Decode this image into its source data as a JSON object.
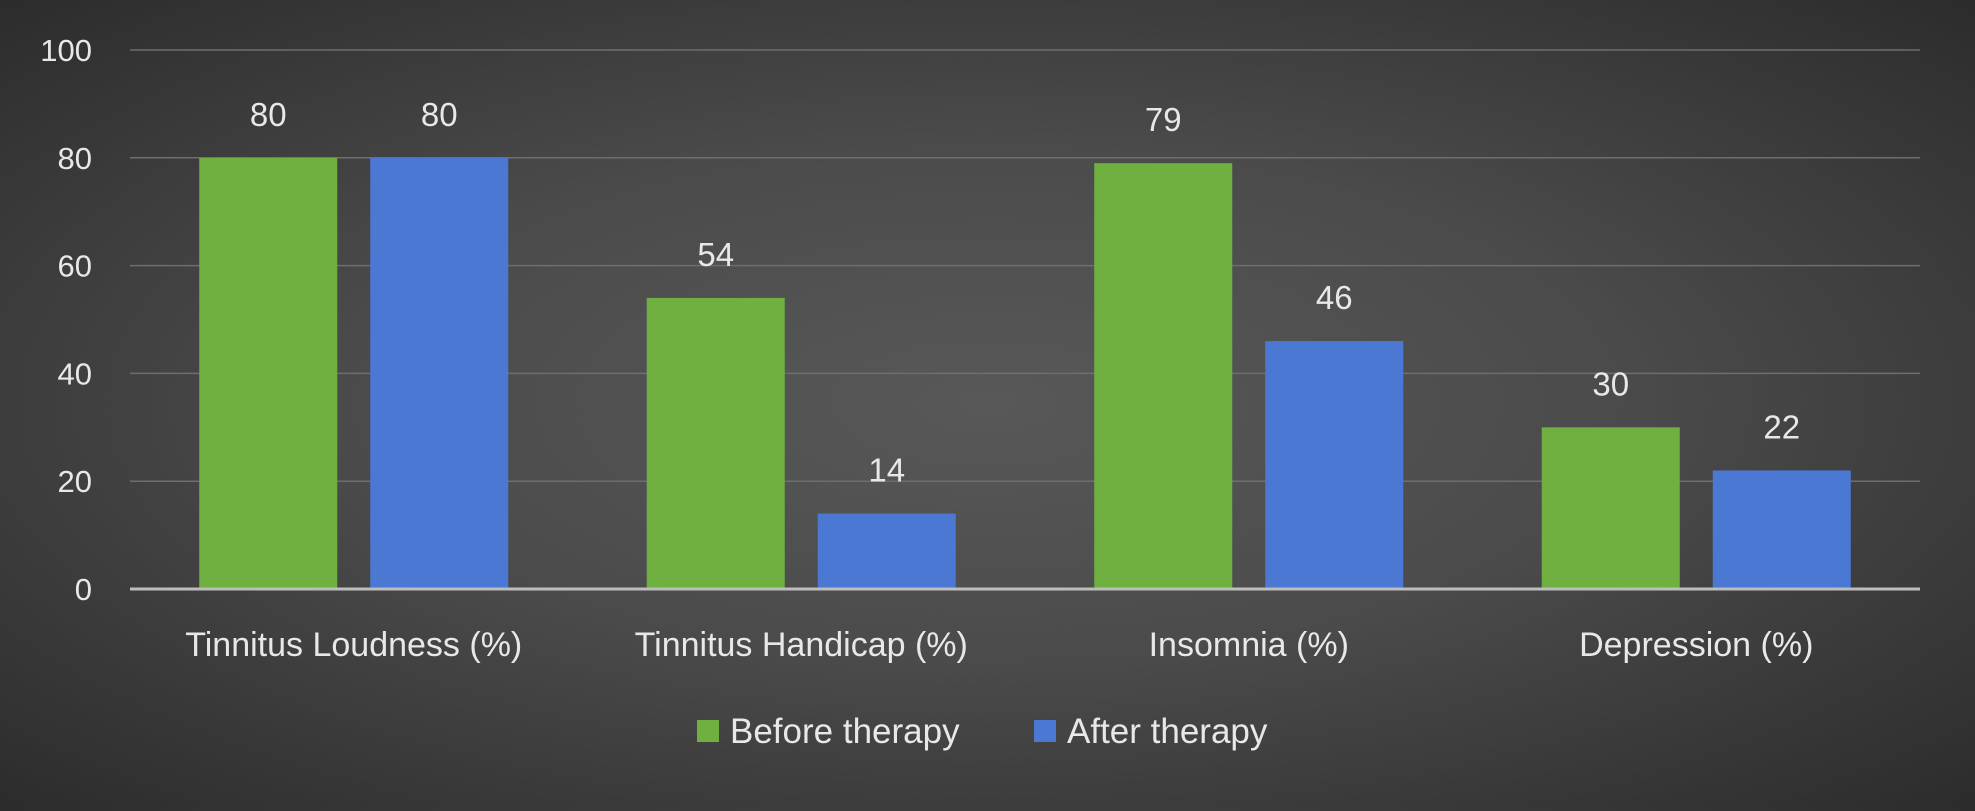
{
  "chart_data": {
    "type": "bar",
    "title": "",
    "xlabel": "",
    "ylabel": "",
    "categories": [
      "Tinnitus Loudness (%)",
      "Tinnitus Handicap (%)",
      "Insomnia (%)",
      "Depression (%)"
    ],
    "series": [
      {
        "name": "Before therapy",
        "values": [
          80,
          54,
          79,
          30
        ],
        "color": "#6fb041"
      },
      {
        "name": "After therapy",
        "values": [
          80,
          14,
          46,
          22
        ],
        "color": "#4a78d2"
      }
    ],
    "ylim": [
      0,
      100
    ],
    "yticks": [
      "0",
      "20",
      "40",
      "60",
      "80",
      "100"
    ],
    "data_labels": true,
    "grid": true,
    "legend_position": "bottom-center",
    "background_color": "#4b4b4b",
    "gridline_color": "#6e6e6e",
    "axis_color": "#bdbdbd"
  }
}
